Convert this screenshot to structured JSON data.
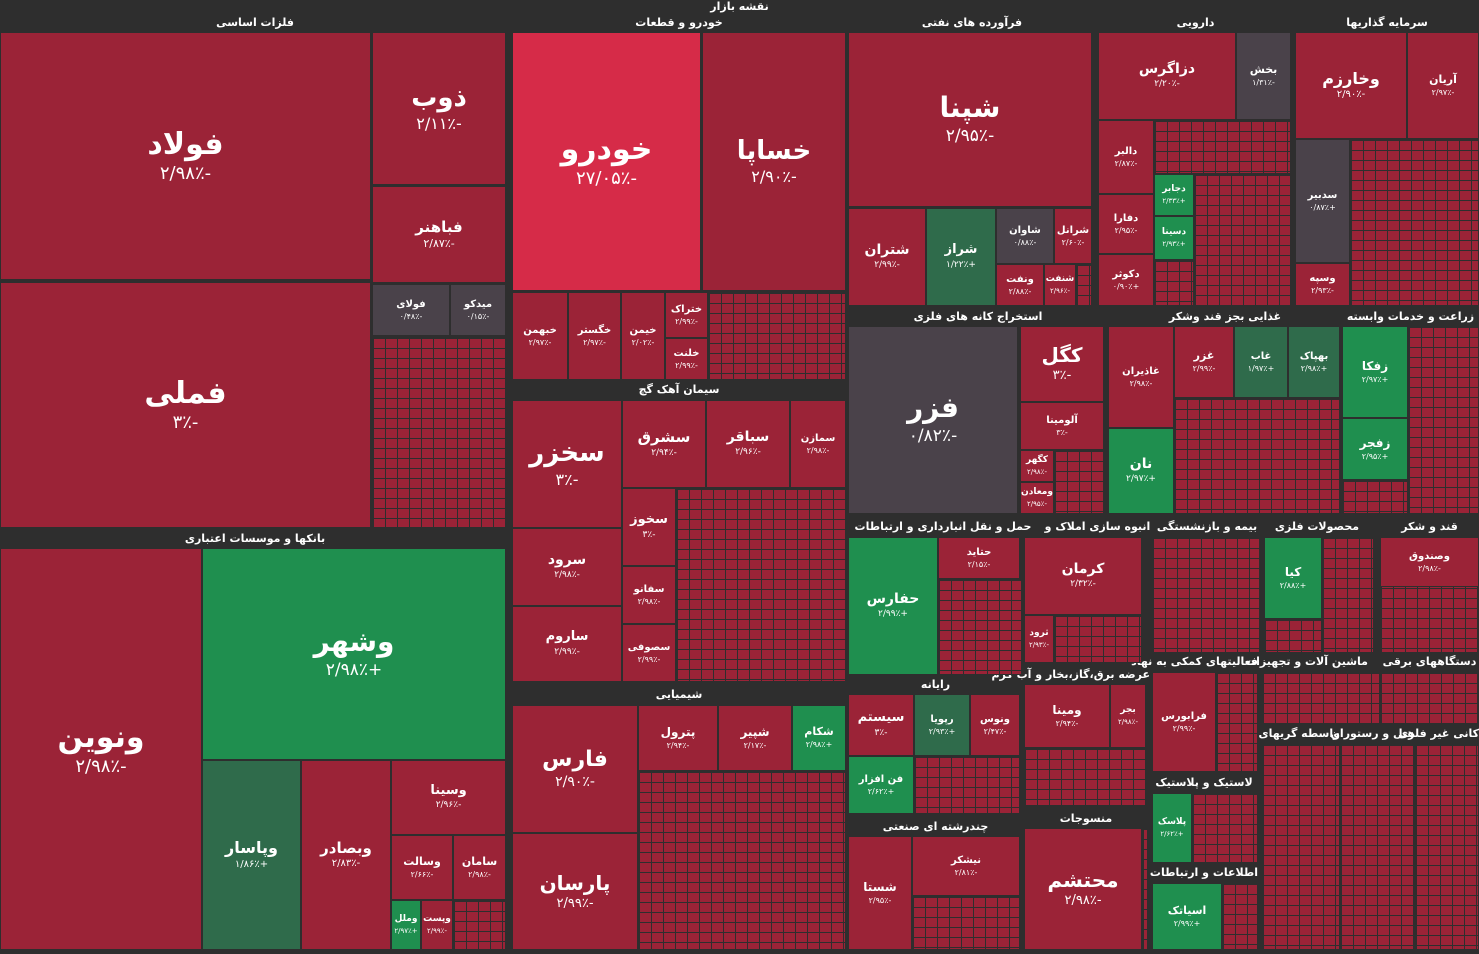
{
  "title": "نقشه بازار",
  "sectors": [
    {
      "name": "فلزات اساسی"
    },
    {
      "name": "خودرو و قطعات"
    },
    {
      "name": "فرآورده های نفتی"
    },
    {
      "name": "دارویی"
    },
    {
      "name": "سرمایه گذاریها"
    },
    {
      "name": "بانکها و موسسات اعتباری"
    },
    {
      "name": "سیمان آهک گچ"
    },
    {
      "name": "استخراج کانه های فلزی"
    },
    {
      "name": "غذایی بجز قند وشکر"
    },
    {
      "name": "زراعت و خدمات وابسته"
    },
    {
      "name": "حمل و نقل انبارداری و ارتباطات"
    },
    {
      "name": "انبوه سازی املاک و"
    },
    {
      "name": "بیمه و بازنشستگی"
    },
    {
      "name": "محصولات فلزی"
    },
    {
      "name": "قند و شکر"
    },
    {
      "name": "شیمیایی"
    },
    {
      "name": "رایانه"
    },
    {
      "name": "عرضه برق،گاز،بخار و آب گرم"
    },
    {
      "name": "فعالیتهای کمکی به نهاد"
    },
    {
      "name": "ماشین آلات و تجهیزات"
    },
    {
      "name": "دستگاههای برقی"
    },
    {
      "name": "چندرشته ای صنعتی"
    },
    {
      "name": "منسوجات"
    },
    {
      "name": "لاستیک و پلاستیک"
    },
    {
      "name": "واسطه گریهای"
    },
    {
      "name": "هتل و رستوران"
    },
    {
      "name": "کانی غیر فلزی"
    },
    {
      "name": "اطلاعات و ارتباطات"
    }
  ],
  "tiles": [
    {
      "s": "فولاد",
      "p": "-۲/۹۸٪"
    },
    {
      "s": "ذوب",
      "p": "-۲/۱۱٪"
    },
    {
      "s": "فباهنر",
      "p": "-۲/۸۷٪"
    },
    {
      "s": "فملی",
      "p": "-۳٪"
    },
    {
      "s": "فولای",
      "p": "-۰/۴۸٪"
    },
    {
      "s": "میدکو",
      "p": "-۰/۱۵٪"
    },
    {
      "s": "خودرو",
      "p": "-۲۷/۰۵٪"
    },
    {
      "s": "خساپا",
      "p": "-۲/۹۰٪"
    },
    {
      "s": "خبهمن",
      "p": "-۲/۹۷٪"
    },
    {
      "s": "خگستر",
      "p": "-۲/۹۷٪"
    },
    {
      "s": "خیمن",
      "p": "-۲/۰۲٪"
    },
    {
      "s": "ختراک",
      "p": "-۲/۹۹٪"
    },
    {
      "s": "خلنت",
      "p": "-۲/۹۹٪"
    },
    {
      "s": "شپنا",
      "p": "-۲/۹۵٪"
    },
    {
      "s": "شتران",
      "p": "-۲/۹۹٪"
    },
    {
      "s": "شراز",
      "p": "+۱/۲۲٪"
    },
    {
      "s": "شاوان",
      "p": "-۰/۸۸٪"
    },
    {
      "s": "شرانل",
      "p": "-۲/۶۰٪"
    },
    {
      "s": "ونفت",
      "p": "-۲/۸۸٪"
    },
    {
      "s": "شنفت",
      "p": "-۲/۹۶٪"
    },
    {
      "s": "دزاگرس",
      "p": "-۲/۲۰٪"
    },
    {
      "s": "بخش",
      "p": "-۱/۳۱٪"
    },
    {
      "s": "دالبر",
      "p": "-۲/۸۷٪"
    },
    {
      "s": "دفارا",
      "p": "-۲/۹۵٪"
    },
    {
      "s": "دکوثر",
      "p": "+۰/۹۰٪"
    },
    {
      "s": "دجابر",
      "p": "+۲/۳۳٪"
    },
    {
      "s": "دسینا",
      "p": "+۲/۹۳٪"
    },
    {
      "s": "وخارزم",
      "p": "-۲/۹۰٪"
    },
    {
      "s": "آریان",
      "p": "-۲/۹۷٪"
    },
    {
      "s": "سدبیر",
      "p": "+۰/۸۷٪"
    },
    {
      "s": "وسپه",
      "p": "-۲/۹۳٪"
    },
    {
      "s": "ونوین",
      "p": "-۲/۹۸٪"
    },
    {
      "s": "وشهر",
      "p": "+۲/۹۸٪"
    },
    {
      "s": "وپاسار",
      "p": "+۱/۸۶٪"
    },
    {
      "s": "وبصادر",
      "p": "-۲/۸۳٪"
    },
    {
      "s": "وسینا",
      "p": "-۲/۹۶٪"
    },
    {
      "s": "وسالت",
      "p": "-۲/۶۶٪"
    },
    {
      "s": "سامان",
      "p": "-۲/۹۸٪"
    },
    {
      "s": "وملل",
      "p": "+۲/۹۷٪"
    },
    {
      "s": "وپست",
      "p": "-۲/۹۹٪"
    },
    {
      "s": "سخزر",
      "p": "-۳٪"
    },
    {
      "s": "سشرق",
      "p": "-۲/۹۴٪"
    },
    {
      "s": "سباقر",
      "p": "-۲/۹۶٪"
    },
    {
      "s": "سمازن",
      "p": "-۲/۹۸٪"
    },
    {
      "s": "سرود",
      "p": "-۲/۹۸٪"
    },
    {
      "s": "سخوز",
      "p": "-۳٪"
    },
    {
      "s": "ساروم",
      "p": "-۲/۹۹٪"
    },
    {
      "s": "سفانو",
      "p": "-۲/۹۸٪"
    },
    {
      "s": "سصوفی",
      "p": "-۲/۹۹٪"
    },
    {
      "s": "فزر",
      "p": "-۰/۸۲٪"
    },
    {
      "s": "کگل",
      "p": "-۳٪"
    },
    {
      "s": "کگهر",
      "p": "-۲/۹۸٪"
    },
    {
      "s": "آلومینا",
      "p": "-۳٪"
    },
    {
      "s": "ومعادن",
      "p": "-۲/۹۵٪"
    },
    {
      "s": "غاذیران",
      "p": "-۲/۹۸٪"
    },
    {
      "s": "نان",
      "p": "+۲/۹۷٪"
    },
    {
      "s": "غزر",
      "p": "-۲/۹۹٪"
    },
    {
      "s": "غاب",
      "p": "+۱/۹۷٪"
    },
    {
      "s": "بهپاک",
      "p": "+۲/۹۸٪"
    },
    {
      "s": "زفکا",
      "p": "+۲/۹۷٪"
    },
    {
      "s": "زفجر",
      "p": "+۲/۹۵٪"
    },
    {
      "s": "حفارس",
      "p": "+۲/۹۹٪"
    },
    {
      "s": "حتاید",
      "p": "-۲/۱۵٪"
    },
    {
      "s": "کرمان",
      "p": "-۲/۳۲٪"
    },
    {
      "s": "ثرود",
      "p": "-۲/۹۳٪"
    },
    {
      "s": "کیا",
      "p": "+۲/۸۸٪"
    },
    {
      "s": "فارس",
      "p": "-۲/۹۰٪"
    },
    {
      "s": "پارسان",
      "p": "-۲/۹۹٪"
    },
    {
      "s": "پترول",
      "p": "-۲/۹۴٪"
    },
    {
      "s": "شپیر",
      "p": "-۲/۱۷٪"
    },
    {
      "s": "شکام",
      "p": "+۲/۹۸٪"
    },
    {
      "s": "سیستم",
      "p": "-۳٪"
    },
    {
      "s": "رپویا",
      "p": "+۲/۹۳٪"
    },
    {
      "s": "فن افزار",
      "p": "+۲/۶۲٪"
    },
    {
      "s": "ومینا",
      "p": "-۲/۹۴٪"
    },
    {
      "s": "شستا",
      "p": "-۲/۹۵٪"
    },
    {
      "s": "محتشم",
      "p": "-۲/۹۸٪"
    },
    {
      "s": "فرابورس",
      "p": "-۲/۹۹٪"
    },
    {
      "s": "اسیاتک",
      "p": "+۲/۹۹٪"
    },
    {
      "s": "پلاسک",
      "p": "+۲/۶۲٪"
    },
    {
      "s": "نیشکر",
      "p": "-۲/۸۱٪"
    },
    {
      "s": "وصندوق",
      "p": "-۲/۹۸٪"
    },
    {
      "s": "ونوس",
      "p": "-۲/۴۷٪"
    },
    {
      "s": "بجر",
      "p": "-۲/۹۸٪"
    }
  ]
}
